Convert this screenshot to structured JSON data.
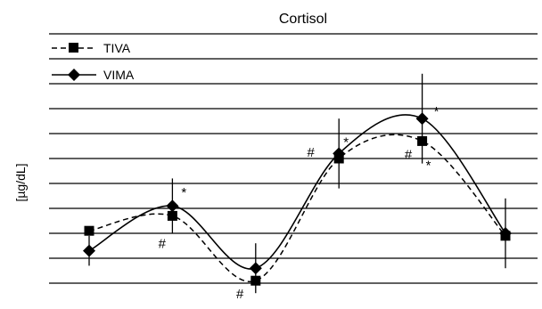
{
  "chart_data": {
    "type": "line",
    "title": "Cortisol",
    "xlabel": "",
    "ylabel": "[µg/dL]",
    "x": [
      1,
      2,
      3,
      4,
      5,
      6
    ],
    "ylim": [
      0,
      10
    ],
    "yticks": [
      0,
      1,
      2,
      3,
      4,
      5,
      6,
      7,
      8,
      9,
      10
    ],
    "grid": "horizontal",
    "legend": "top-left",
    "series": [
      {
        "name": "TIVA",
        "marker": "square",
        "line": "dashed",
        "values": [
          2.1,
          2.7,
          0.1,
          5.0,
          5.7,
          1.9
        ],
        "error": [
          null,
          null,
          null,
          null,
          null,
          null
        ]
      },
      {
        "name": "VIMA",
        "marker": "diamond",
        "line": "solid",
        "values": [
          1.3,
          3.1,
          0.6,
          5.2,
          6.6,
          2.0
        ],
        "error": [
          0.6,
          1.1,
          1.0,
          1.4,
          1.8,
          1.4
        ]
      }
    ],
    "annotations": [
      {
        "text": "*",
        "x": 2,
        "series": "VIMA"
      },
      {
        "text": "#",
        "x": 2,
        "series": "TIVA"
      },
      {
        "text": "#",
        "x": 3,
        "series": "TIVA"
      },
      {
        "text": "#",
        "x": 4,
        "series": "TIVA"
      },
      {
        "text": "*",
        "x": 4,
        "series": "VIMA"
      },
      {
        "text": "*",
        "x": 5,
        "series": "VIMA"
      },
      {
        "text": "#",
        "x": 5,
        "series": "TIVA"
      },
      {
        "text": "*",
        "x": 5,
        "series": "TIVA"
      }
    ]
  }
}
